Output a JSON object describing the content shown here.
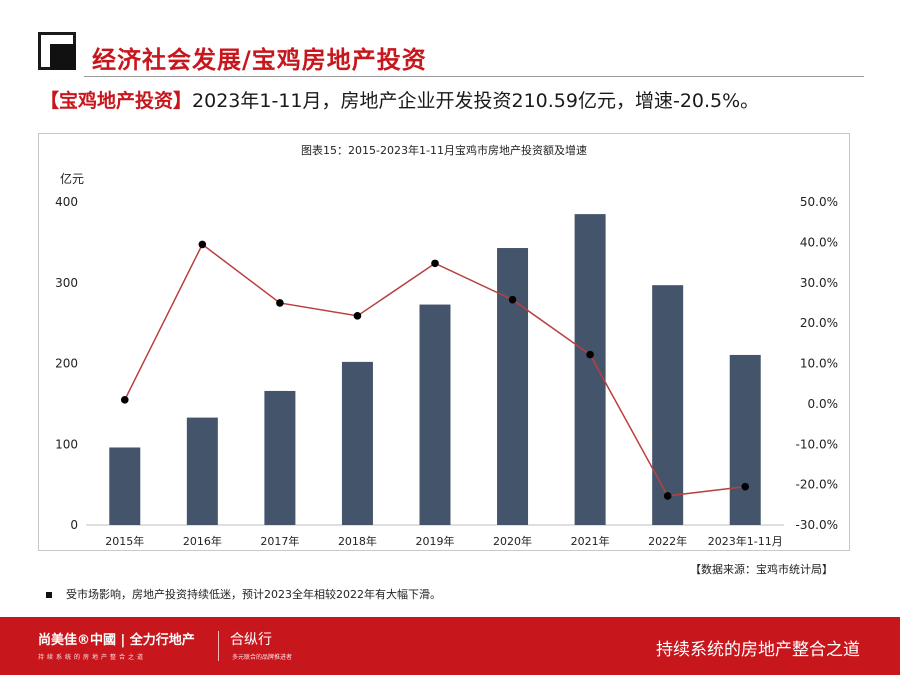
{
  "header": {
    "title": "经济社会发展/宝鸡房地产投资"
  },
  "headline": {
    "tag": "【宝鸡地产投资】",
    "text": "2023年1-11月，房地产企业开发投资210.59亿元，增速-20.5%。"
  },
  "chart_data": {
    "type": "bar",
    "title": "图表15：2015-2023年1-11月宝鸡市房地产投资额及增速",
    "unit_left": "亿元",
    "categories": [
      "2015年",
      "2016年",
      "2017年",
      "2018年",
      "2019年",
      "2020年",
      "2021年",
      "2022年",
      "2023年1-11月"
    ],
    "series": [
      {
        "values": [
          96,
          133,
          166,
          202,
          273,
          343,
          385,
          297,
          210.59
        ],
        "axis": "left",
        "type": "bar",
        "color": "#44546a"
      },
      {
        "values": [
          1.0,
          39.5,
          25.0,
          21.8,
          34.8,
          25.8,
          12.2,
          -22.8,
          -20.5
        ],
        "axis": "right",
        "type": "line",
        "color": "#b94040",
        "marker_color": "#000000"
      }
    ],
    "ylim_left": [
      0,
      400
    ],
    "yticks_left": [
      "0",
      "100",
      "200",
      "300",
      "400"
    ],
    "ylim_right": [
      -30,
      50
    ],
    "yticks_right": [
      "-30.0%",
      "-20.0%",
      "-10.0%",
      "0.0%",
      "10.0%",
      "20.0%",
      "30.0%",
      "40.0%",
      "50.0%"
    ],
    "grid": false,
    "legend": false
  },
  "source": "【数据来源：宝鸡市统计局】",
  "note": "受市场影响，房地产投资持续低迷，预计2023全年相较2022年有大幅下滑。",
  "footer": {
    "brand": "尚美佳®中國 | 全力行地产",
    "brand_sub": "持续系统的房地产整合之道",
    "brand2": "合纵行",
    "brand2_sub": "多元联合的品牌推进者",
    "slogan": "持续系统的房地产整合之道"
  },
  "colors": {
    "accent": "#c8161d",
    "bar": "#44546a",
    "line": "#b94040"
  }
}
